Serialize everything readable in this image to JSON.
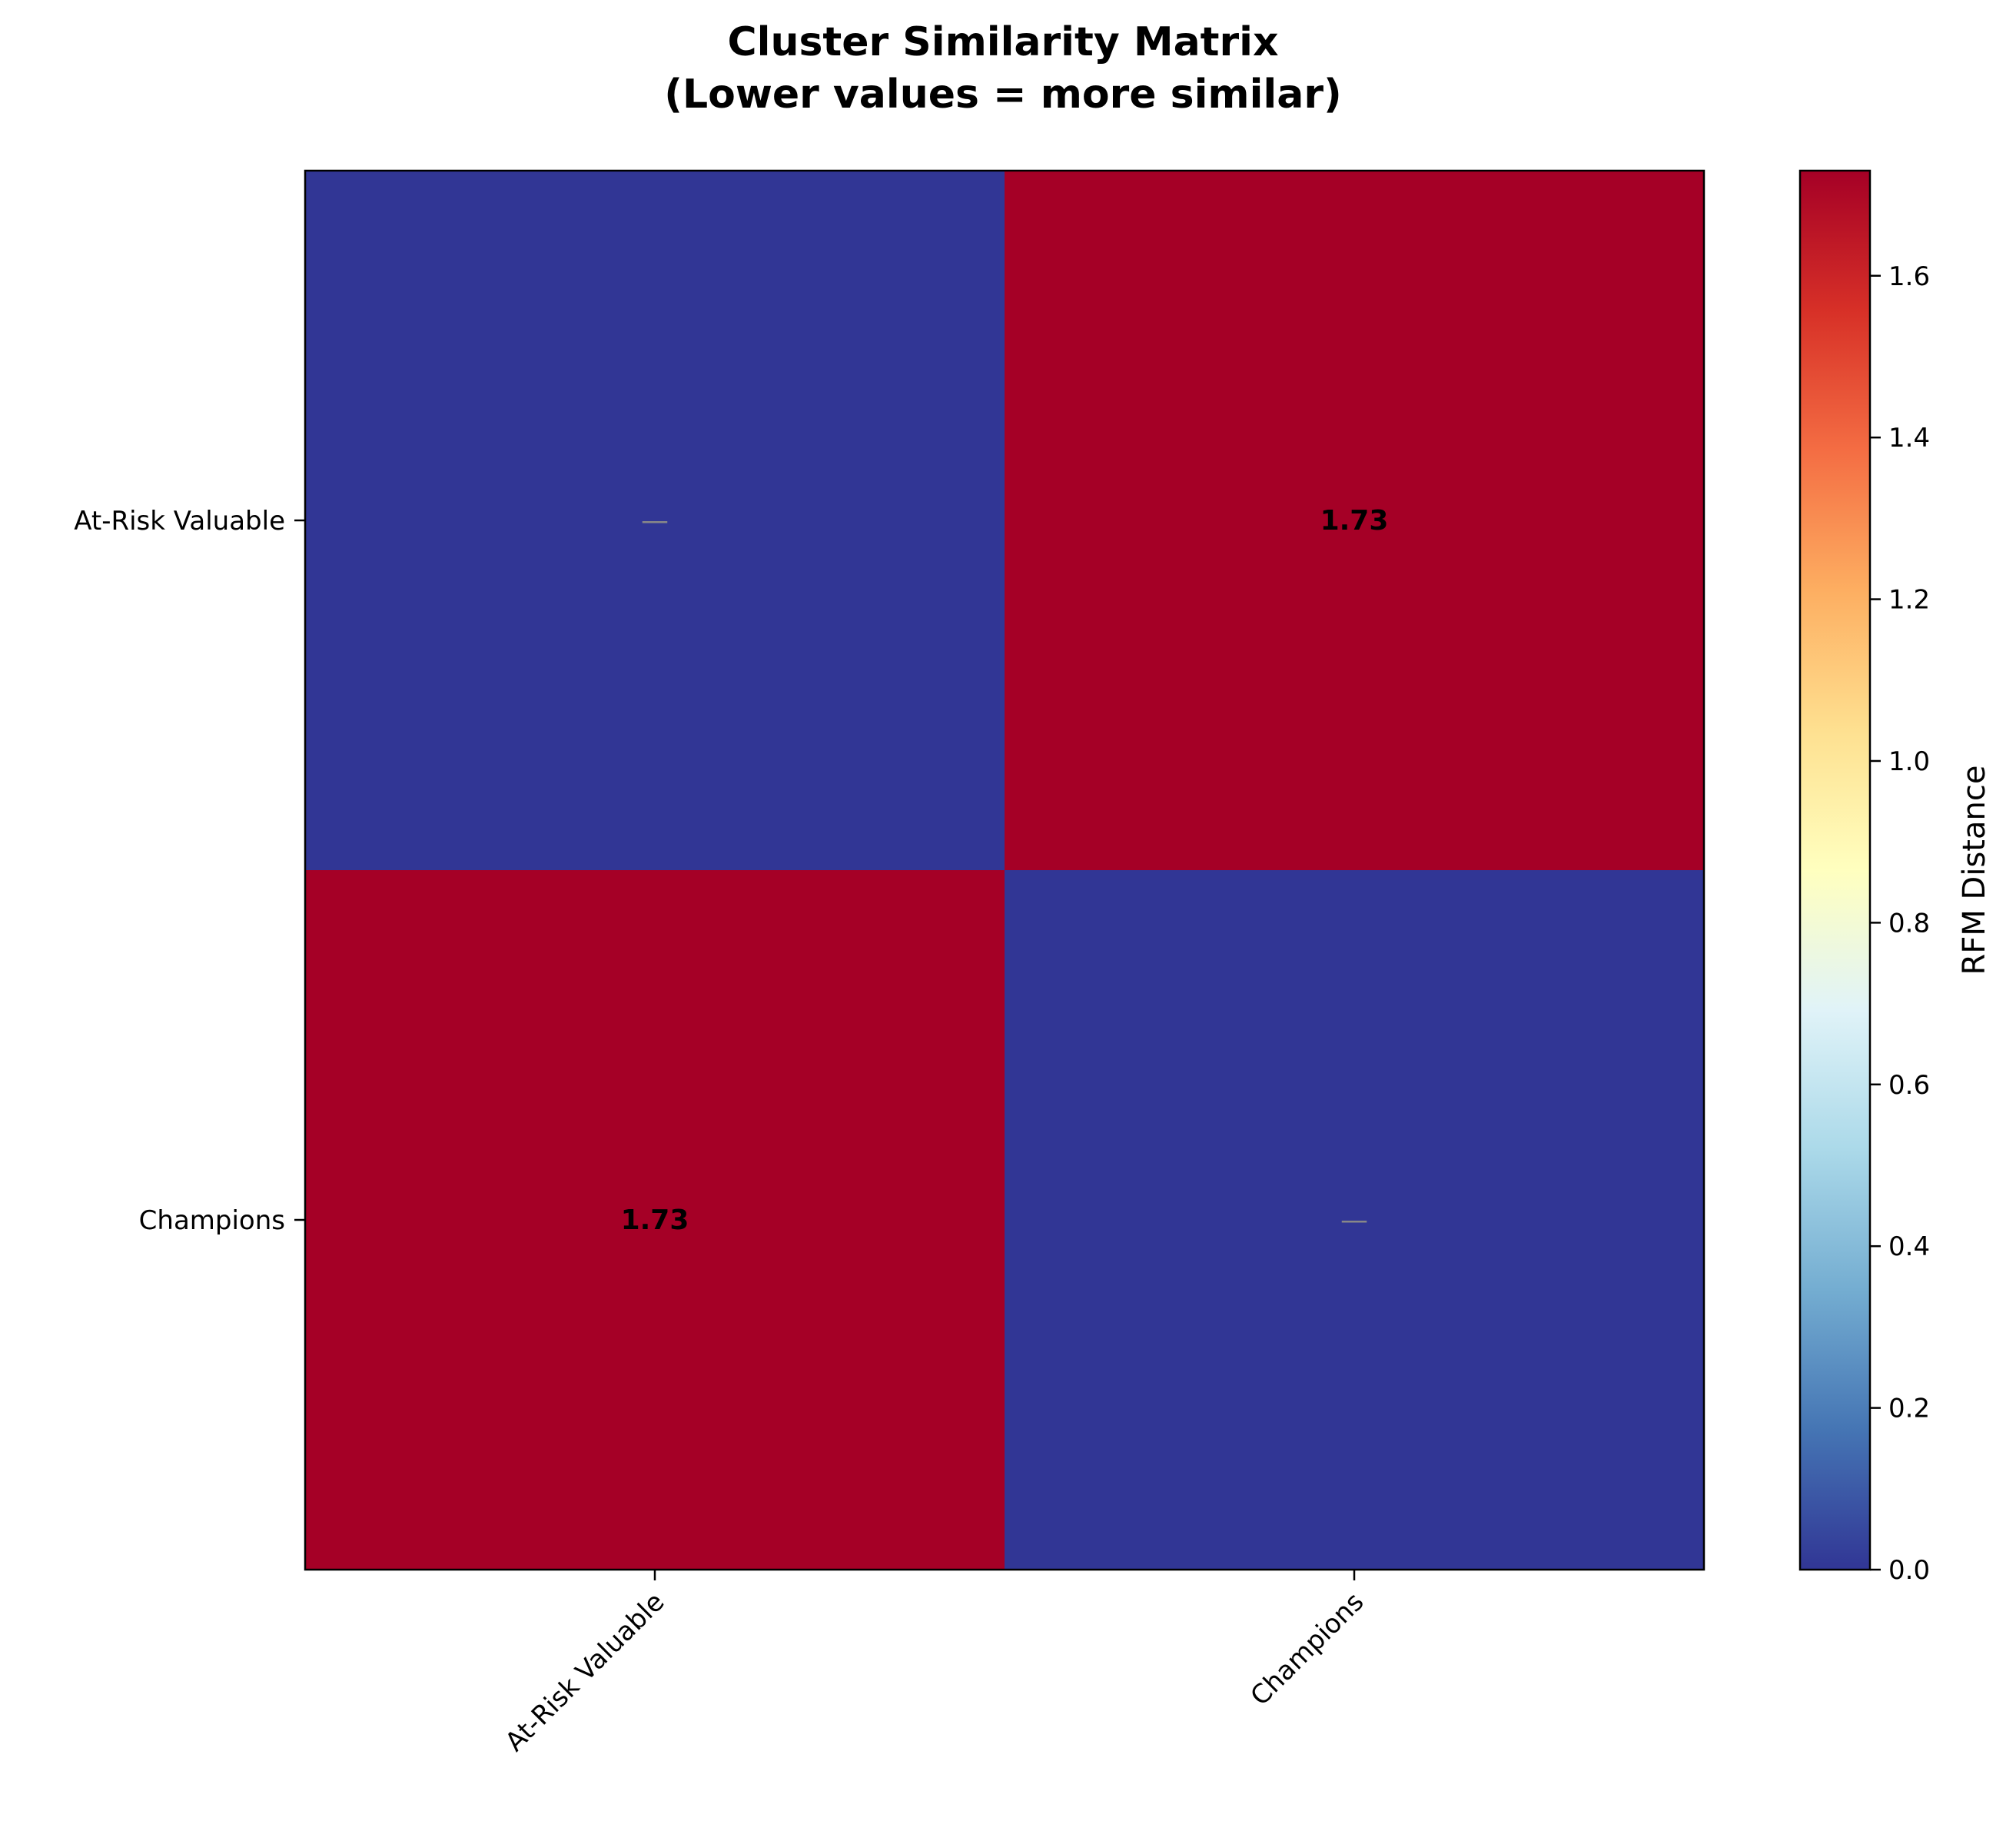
{
  "chart_data": {
    "type": "heatmap",
    "title_lines": [
      "Cluster Similarity Matrix",
      "(Lower values = more similar)"
    ],
    "row_labels": [
      "At-Risk Valuable",
      "Champions"
    ],
    "col_labels": [
      "At-Risk Valuable",
      "Champions"
    ],
    "values": [
      [
        0.0,
        1.73
      ],
      [
        1.73,
        0.0
      ]
    ],
    "cell_labels": [
      [
        "—",
        "1.73"
      ],
      [
        "1.73",
        "—"
      ]
    ],
    "colorbar": {
      "label": "RFM Distance",
      "range": [
        0.0,
        1.73
      ],
      "ticks": [
        "0.0",
        "0.2",
        "0.4",
        "0.6",
        "0.8",
        "1.0",
        "1.2",
        "1.4",
        "1.6"
      ],
      "colormap": "RdYlBu_r"
    },
    "colors": {
      "low": "#313695",
      "high": "#a50026",
      "diagonal_marker": "#888888"
    }
  }
}
